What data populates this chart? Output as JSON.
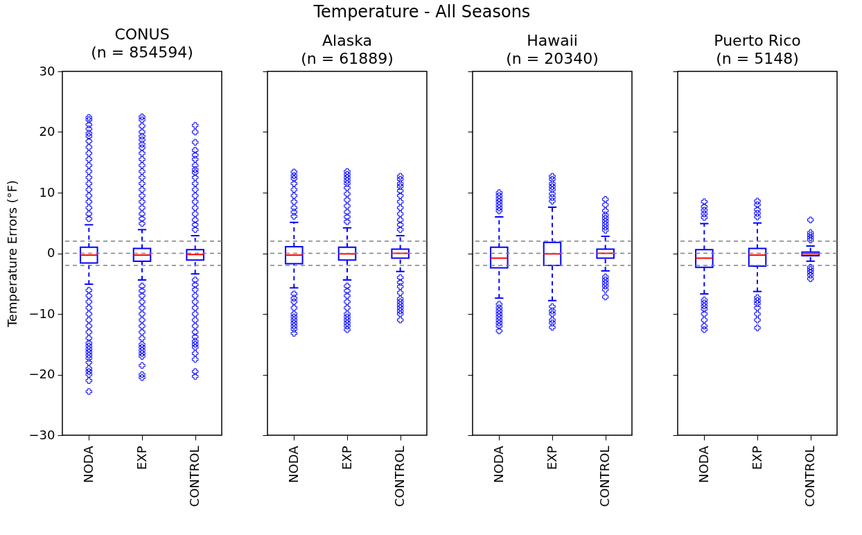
{
  "chart_data": [
    {
      "type": "box",
      "title": "CONUS\n(n = 854594)",
      "annotations": [
        "Temperature - All Seasons"
      ],
      "ylabel": "Temperature Errors (°F)",
      "categories": [
        "NODA",
        "EXP",
        "CONTROL"
      ],
      "ylim": [
        -30,
        30
      ],
      "yticks": [
        -30,
        -20,
        -10,
        0,
        10,
        20,
        30
      ],
      "marker": "cross",
      "line_style": "dashed",
      "ref_lines": [
        {
          "axis": "y",
          "value": -2,
          "color": "#808080",
          "line_style": "dashed"
        },
        {
          "axis": "y",
          "value": 0,
          "color": "#808080",
          "line_style": "dashed"
        },
        {
          "axis": "y",
          "value": 2,
          "color": "#808080",
          "line_style": "dashed"
        }
      ],
      "series": [
        {
          "color": "#0000ff",
          "boxes": [
            {
              "low": -5.1,
              "q1": -1.6,
              "median": -0.3,
              "q3": 1.0,
              "high": 4.7,
              "outliers": [
                5.7,
                6.5,
                7.5,
                8.5,
                9.5,
                10.5,
                11.5,
                12.5,
                13.5,
                14.5,
                15.5,
                16.5,
                17.5,
                18.5,
                19.3,
                19.8,
                20.5,
                21.2,
                22,
                22.4,
                -6.1,
                -7,
                -8,
                -9,
                -10,
                -11,
                -12,
                -13,
                -14,
                -14.8,
                -15.3,
                -15.8,
                -16.3,
                -16.8,
                -17.3,
                -18,
                -19,
                -19.5,
                -20,
                -21,
                -22.8
              ]
            },
            {
              "low": -4.4,
              "q1": -1.3,
              "median": -0.3,
              "q3": 0.8,
              "high": 3.9,
              "outliers": [
                4.9,
                5.7,
                6.5,
                7.5,
                8.5,
                9.5,
                10.5,
                11.5,
                12.5,
                13.5,
                14.5,
                15.5,
                16.5,
                17.4,
                18,
                18.7,
                19.3,
                20,
                21,
                22,
                22.5,
                -5.4,
                -6.2,
                -7,
                -8,
                -9,
                -10,
                -11,
                -12,
                -13,
                -14,
                -15,
                -15.5,
                -16,
                -16.5,
                -17,
                -18.5,
                -20,
                -20.5
              ]
            },
            {
              "low": -3.4,
              "q1": -1.1,
              "median": -0.2,
              "q3": 0.6,
              "high": 2.9,
              "outliers": [
                3.9,
                4.7,
                5.5,
                6.5,
                7.5,
                8.5,
                9.5,
                10.5,
                11.5,
                12.5,
                13.3,
                13.8,
                14.5,
                15.5,
                16.2,
                17,
                18.3,
                20,
                21.1,
                -4.4,
                -5.2,
                -6,
                -7,
                -8,
                -9,
                -10,
                -11,
                -12,
                -13,
                -13.8,
                -14.5,
                -15,
                -15.5,
                -16.5,
                -17.5,
                -19.5,
                -20.3
              ]
            }
          ]
        }
      ]
    },
    {
      "type": "box",
      "title": "Alaska\n(n = 61889)",
      "categories": [
        "NODA",
        "EXP",
        "CONTROL"
      ],
      "ylim": [
        -30,
        30
      ],
      "yticks": [
        -30,
        -20,
        -10,
        0,
        10,
        20,
        30
      ],
      "tick_labels": "x",
      "marker": "cross",
      "line_style": "dashed",
      "ref_lines": [
        {
          "axis": "y",
          "value": -2,
          "color": "#808080",
          "line_style": "dashed"
        },
        {
          "axis": "y",
          "value": 0,
          "color": "#808080",
          "line_style": "dashed"
        },
        {
          "axis": "y",
          "value": 2,
          "color": "#808080",
          "line_style": "dashed"
        }
      ],
      "series": [
        {
          "color": "#0000ff",
          "boxes": [
            {
              "low": -5.7,
              "q1": -1.7,
              "median": -0.3,
              "q3": 1.1,
              "high": 5.1,
              "outliers": [
                6.1,
                6.8,
                7.5,
                8.5,
                9.5,
                10.5,
                11.5,
                12.3,
                12.8,
                13.4,
                -6.7,
                -7.4,
                -8,
                -9,
                -10,
                -10.5,
                -11,
                -11.5,
                -12,
                -12.5,
                -13.2
              ]
            },
            {
              "low": -4.4,
              "q1": -1.1,
              "median": -0.1,
              "q3": 1.0,
              "high": 4.2,
              "outliers": [
                5.2,
                6,
                6.8,
                7.8,
                8.8,
                9.8,
                10.8,
                11.5,
                12,
                12.5,
                13,
                13.5,
                -5.4,
                -6.2,
                -7,
                -8,
                -9,
                -10,
                -10.5,
                -11,
                -11.5,
                -12,
                -12.6
              ]
            },
            {
              "low": -3.0,
              "q1": -0.8,
              "median": 0,
              "q3": 0.7,
              "high": 2.9,
              "outliers": [
                3.9,
                4.7,
                5.5,
                6.5,
                7.5,
                8.5,
                9.5,
                10.3,
                11,
                11.5,
                12.2,
                12.7,
                -4,
                -4.8,
                -5.5,
                -6.5,
                -7.5,
                -8,
                -8.5,
                -9,
                -9.5,
                -10,
                -11
              ]
            }
          ]
        }
      ]
    },
    {
      "type": "box",
      "title": "Hawaii\n(n = 20340)",
      "categories": [
        "NODA",
        "EXP",
        "CONTROL"
      ],
      "ylim": [
        -30,
        30
      ],
      "yticks": [
        -30,
        -20,
        -10,
        0,
        10,
        20,
        30
      ],
      "tick_labels": "x",
      "marker": "cross",
      "line_style": "dashed",
      "ref_lines": [
        {
          "axis": "y",
          "value": -2,
          "color": "#808080",
          "line_style": "dashed"
        },
        {
          "axis": "y",
          "value": 0,
          "color": "#808080",
          "line_style": "dashed"
        },
        {
          "axis": "y",
          "value": 2,
          "color": "#808080",
          "line_style": "dashed"
        }
      ],
      "series": [
        {
          "color": "#0000ff",
          "boxes": [
            {
              "low": -7.4,
              "q1": -2.4,
              "median": -0.8,
              "q3": 1.0,
              "high": 6.0,
              "outliers": [
                7,
                7.5,
                8,
                8.5,
                9,
                9.5,
                10,
                -8.4,
                -9,
                -9.5,
                -10,
                -10.5,
                -11,
                -11.5,
                -12,
                -12.8
              ]
            },
            {
              "low": -7.8,
              "q1": -2.0,
              "median": -0.1,
              "q3": 1.8,
              "high": 7.6,
              "outliers": [
                8.6,
                9.2,
                9.8,
                10.5,
                11,
                11.5,
                12.2,
                12.7,
                -8.8,
                -9.5,
                -10,
                -11,
                -11.5,
                -12.2
              ]
            },
            {
              "low": -2.9,
              "q1": -0.8,
              "median": 0,
              "q3": 0.7,
              "high": 2.8,
              "outliers": [
                3.8,
                4.3,
                4.8,
                5.3,
                5.8,
                6.3,
                7,
                8,
                8.9,
                -3.9,
                -4.4,
                -4.9,
                -5.4,
                -6,
                -7.2
              ]
            }
          ]
        }
      ]
    },
    {
      "type": "box",
      "title": "Puerto Rico\n(n = 5148)",
      "categories": [
        "NODA",
        "EXP",
        "CONTROL"
      ],
      "ylim": [
        -30,
        30
      ],
      "yticks": [
        -30,
        -20,
        -10,
        0,
        10,
        20,
        30
      ],
      "tick_labels": "x",
      "marker": "cross",
      "line_style": "dashed",
      "ref_lines": [
        {
          "axis": "y",
          "value": -2,
          "color": "#808080",
          "line_style": "dashed"
        },
        {
          "axis": "y",
          "value": 0,
          "color": "#808080",
          "line_style": "dashed"
        },
        {
          "axis": "y",
          "value": 2,
          "color": "#808080",
          "line_style": "dashed"
        }
      ],
      "series": [
        {
          "color": "#0000ff",
          "boxes": [
            {
              "low": -6.7,
              "q1": -2.3,
              "median": -0.8,
              "q3": 0.6,
              "high": 4.9,
              "outliers": [
                5.9,
                6.5,
                7.1,
                7.7,
                8.5,
                -7.7,
                -8.2,
                -8.7,
                -9.2,
                -10,
                -11,
                -12,
                -12.6
              ]
            },
            {
              "low": -6.3,
              "q1": -2.1,
              "median": -0.3,
              "q3": 0.8,
              "high": 5.0,
              "outliers": [
                6,
                6.6,
                7.2,
                8,
                8.6,
                -7.3,
                -7.8,
                -8.3,
                -9,
                -10,
                -11,
                -12.3
              ]
            },
            {
              "low": -1.3,
              "q1": -0.4,
              "median": -0.1,
              "q3": 0.2,
              "high": 1.2,
              "outliers": [
                2.2,
                2.6,
                3,
                3.4,
                5.5,
                -2.3,
                -2.7,
                -3.1,
                -3.6,
                -4.2
              ]
            }
          ]
        }
      ]
    }
  ]
}
